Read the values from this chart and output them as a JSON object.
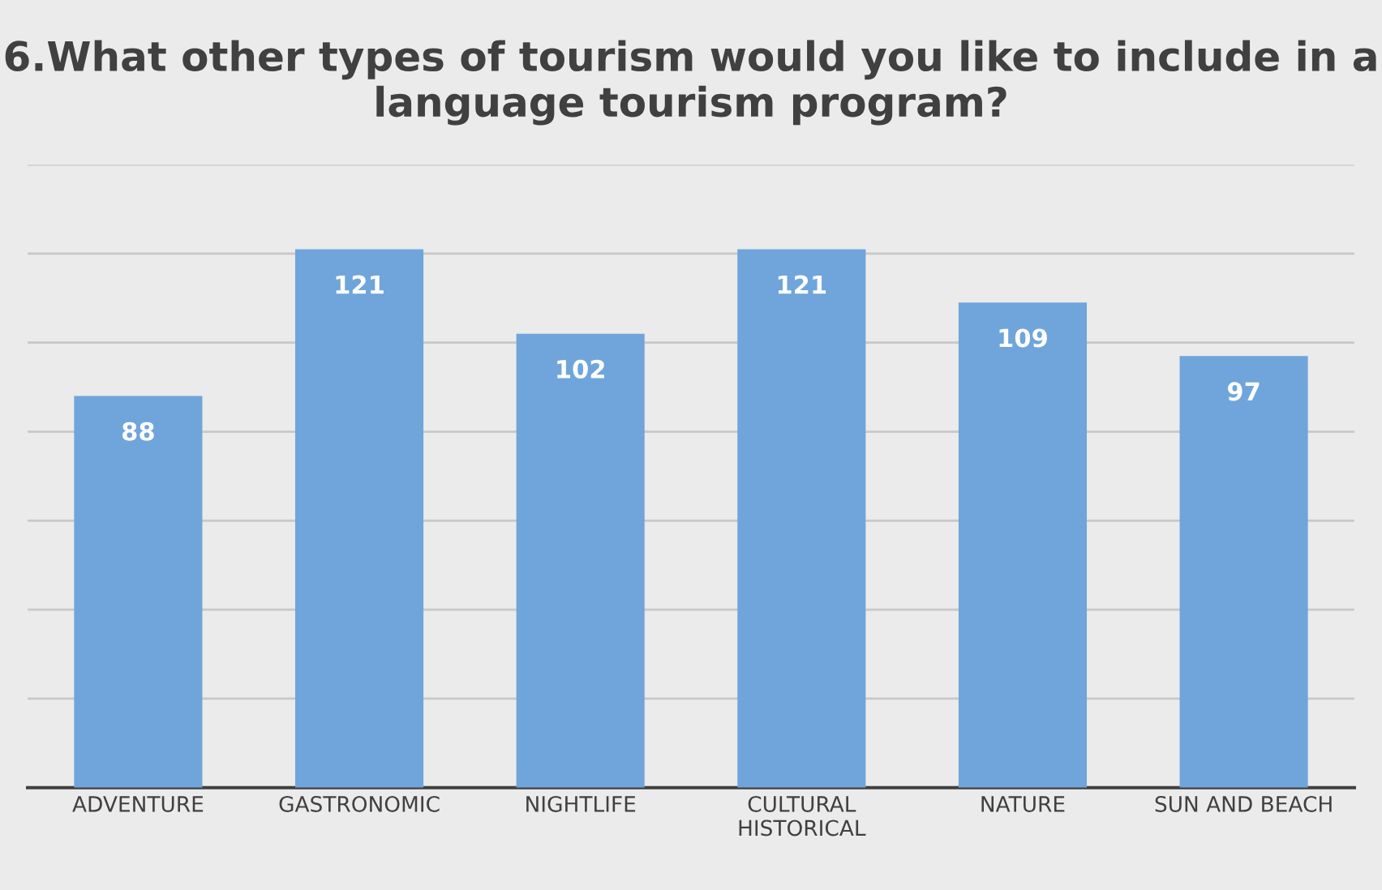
{
  "chart_data": {
    "type": "bar",
    "title": "6.What other types of tourism would you like to include in a language tourism program?",
    "categories": [
      "ADVENTURE",
      "GASTRONOMIC",
      "NIGHTLIFE",
      "CULTURAL\nHISTORICAL",
      "NATURE",
      "SUN AND BEACH"
    ],
    "values": [
      88,
      121,
      102,
      121,
      109,
      97
    ],
    "color": "#6fa5da",
    "ylim": [
      0,
      140
    ],
    "yticks": [
      {
        "value": 0,
        "label": null
      },
      {
        "value": 20,
        "label": null
      },
      {
        "value": 40,
        "label": null
      },
      {
        "value": 60,
        "label": null
      },
      {
        "value": 80,
        "label": null
      },
      {
        "value": 100,
        "label": null
      },
      {
        "value": 120,
        "label": null
      },
      {
        "value": 140,
        "label": null
      }
    ],
    "grid": "y",
    "tick_labels": "x",
    "data_labels": true,
    "legend": false
  }
}
